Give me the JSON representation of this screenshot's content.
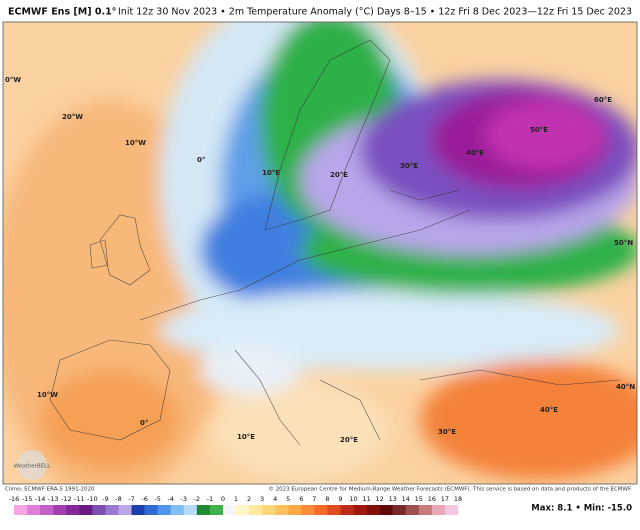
{
  "header": {
    "model": "ECMWF Ens [M] 0.1°",
    "info": "Init 12z 30 Nov 2023 • 2m Temperature Anomaly (°C)",
    "period": "Days 8–15 • 12z Fri 8 Dec 2023—12z Fri 15 Dec 2023"
  },
  "map": {
    "labels": [
      "0°W",
      "20°W",
      "10°W",
      "0°",
      "10°E",
      "20°E",
      "30°E",
      "40°E",
      "50°E",
      "60°E",
      "50°N",
      "40°N",
      "10°W",
      "0°",
      "10°E",
      "20°E",
      "30°E",
      "40°E"
    ],
    "watermark": "WeatherBELL"
  },
  "footer": {
    "climo": "Climo: ECMWF ERA-5 1991-2020",
    "credit": "© 2023 European Centre for Medium-Range Weather Forecasts (ECMWF). This service is based on data and products of the ECMWF."
  },
  "colorbar": {
    "ticks": [
      -16,
      -15,
      -14,
      -13,
      -12,
      -11,
      -10,
      -9,
      -8,
      -7,
      -6,
      -5,
      -4,
      -3,
      -2,
      -1,
      0,
      1,
      2,
      3,
      4,
      5,
      6,
      7,
      8,
      9,
      10,
      11,
      12,
      13,
      14,
      15,
      16,
      17,
      18
    ],
    "colors": [
      "#f4a6e6",
      "#e07fd8",
      "#c45fc8",
      "#a43fb0",
      "#86289a",
      "#6a1a80",
      "#7a4fb0",
      "#9a7ad0",
      "#bba6e6",
      "#1c3fb0",
      "#2f6ad6",
      "#4f96ec",
      "#80bff5",
      "#b5dcfa",
      "#1f8a2e",
      "#3fb04a",
      "#f5f5f5",
      "#fff6c8",
      "#ffe9a0",
      "#ffd67a",
      "#ffc060",
      "#ffa848",
      "#ff8c38",
      "#f46a2a",
      "#e04a20",
      "#c02a18",
      "#a01810",
      "#801008",
      "#600808",
      "#7a2a2a",
      "#a05050",
      "#c87a7a",
      "#e8a8b8",
      "#f4c8e0"
    ],
    "stats": "Max: 8.1 • Min: -15.0"
  }
}
